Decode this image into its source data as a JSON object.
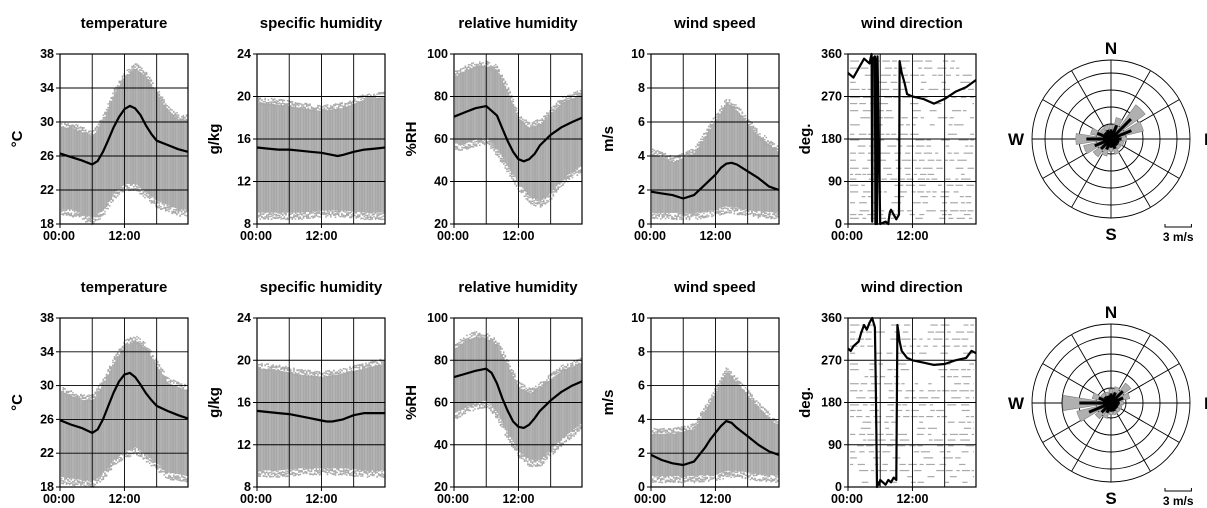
{
  "colors": {
    "envelope": "#a9a9a9",
    "mean": "#000000",
    "rose_fill": "#b0b0b0",
    "grid": "#000000"
  },
  "compass_labels": {
    "n": "N",
    "e": "E",
    "s": "S",
    "w": "W"
  },
  "rose_scale_label": "3 m/s",
  "chart_data": [
    {
      "type": "line",
      "row": 1,
      "title": "temperature",
      "ylabel": "°C",
      "x_ticks": [
        "00:00",
        "12:00"
      ],
      "xlim": [
        "00:00",
        "23:50"
      ],
      "yticks": [
        18,
        22,
        26,
        30,
        34,
        38
      ],
      "ylim": [
        18,
        38
      ],
      "envelope_hours": [
        0,
        2,
        4,
        6,
        8,
        10,
        12,
        14,
        16,
        18,
        20,
        22,
        24
      ],
      "envelope_lower": [
        19,
        19,
        18.5,
        18,
        19,
        21,
        22,
        22,
        21,
        20,
        19.5,
        19,
        19
      ],
      "envelope_upper": [
        30,
        30,
        29.5,
        29,
        31,
        34,
        36,
        37,
        36,
        34,
        32,
        31,
        31
      ],
      "mean_hours": [
        0,
        2,
        4,
        6,
        7,
        8,
        9,
        10,
        11,
        12,
        13,
        14,
        15,
        16,
        17,
        18,
        20,
        22,
        24
      ],
      "mean_values": [
        26.3,
        25.9,
        25.5,
        25.0,
        25.4,
        26.5,
        27.9,
        29.4,
        30.6,
        31.5,
        31.9,
        31.6,
        30.8,
        29.6,
        28.6,
        27.8,
        27.3,
        26.8,
        26.5
      ]
    },
    {
      "type": "line",
      "row": 1,
      "title": "specific humidity",
      "ylabel": "g/kg",
      "x_ticks": [
        "00:00",
        "12:00"
      ],
      "xlim": [
        "00:00",
        "23:50"
      ],
      "yticks": [
        8,
        12,
        16,
        20,
        24
      ],
      "ylim": [
        8,
        24
      ],
      "envelope_hours": [
        0,
        4,
        8,
        12,
        16,
        20,
        24
      ],
      "envelope_lower": [
        8.5,
        8.5,
        8.5,
        8.7,
        8.7,
        8.5,
        8.5
      ],
      "envelope_upper": [
        20,
        19.8,
        19.5,
        19.2,
        19.5,
        20.3,
        20.5
      ],
      "mean_hours": [
        0,
        2,
        4,
        6,
        8,
        10,
        12,
        14,
        15,
        16,
        18,
        20,
        22,
        24
      ],
      "mean_values": [
        15.2,
        15.1,
        15.0,
        15.0,
        14.9,
        14.8,
        14.7,
        14.5,
        14.4,
        14.5,
        14.8,
        15.0,
        15.1,
        15.2
      ]
    },
    {
      "type": "line",
      "row": 1,
      "title": "relative humidity",
      "ylabel": "%RH",
      "x_ticks": [
        "00:00",
        "12:00"
      ],
      "xlim": [
        "00:00",
        "23:50"
      ],
      "yticks": [
        20,
        40,
        60,
        80,
        100
      ],
      "ylim": [
        20,
        100
      ],
      "envelope_hours": [
        0,
        2,
        4,
        6,
        8,
        10,
        12,
        14,
        16,
        18,
        20,
        22,
        24
      ],
      "envelope_lower": [
        55,
        55,
        57,
        58,
        52,
        44,
        36,
        30,
        28,
        32,
        38,
        42,
        45
      ],
      "envelope_upper": [
        92,
        95,
        97,
        97,
        95,
        85,
        72,
        68,
        70,
        75,
        80,
        82,
        84
      ],
      "mean_hours": [
        0,
        2,
        4,
        6,
        8,
        9,
        10,
        11,
        12,
        13,
        14,
        15,
        16,
        18,
        20,
        22,
        24
      ],
      "mean_values": [
        70.5,
        72.5,
        74.5,
        75.5,
        71,
        65,
        59,
        54,
        50.5,
        49.5,
        50.5,
        53,
        57,
        62,
        65.5,
        68,
        70
      ]
    },
    {
      "type": "line",
      "row": 1,
      "title": "wind speed",
      "ylabel": "m/s",
      "x_ticks": [
        "00:00",
        "12:00"
      ],
      "xlim": [
        "00:00",
        "23:50"
      ],
      "yticks": [
        0,
        2,
        4,
        6,
        8,
        10
      ],
      "ylim": [
        0,
        10
      ],
      "envelope_hours": [
        0,
        4,
        8,
        12,
        14,
        16,
        20,
        24
      ],
      "envelope_lower": [
        0.3,
        0.3,
        0.3,
        0.5,
        0.7,
        0.6,
        0.4,
        0.3
      ],
      "envelope_upper": [
        4.5,
        4.0,
        4.5,
        6.5,
        7.5,
        7.0,
        5.5,
        4.5
      ],
      "mean_hours": [
        0,
        2,
        4,
        6,
        8,
        10,
        12,
        13,
        14,
        15,
        16,
        18,
        20,
        22,
        24
      ],
      "mean_values": [
        1.9,
        1.8,
        1.7,
        1.5,
        1.7,
        2.3,
        2.9,
        3.3,
        3.55,
        3.6,
        3.5,
        3.1,
        2.7,
        2.2,
        2.0
      ]
    },
    {
      "type": "line",
      "row": 1,
      "title": "wind direction",
      "ylabel": "deg.",
      "x_ticks": [
        "00:00",
        "12:00"
      ],
      "xlim": [
        "00:00",
        "23:50"
      ],
      "yticks": [
        0,
        90,
        180,
        270,
        360
      ],
      "ylim": [
        0,
        360
      ],
      "envelope_rows": [
        12,
        20,
        28,
        45,
        58,
        68,
        82,
        95,
        105,
        118,
        135,
        150,
        165,
        178,
        190,
        210,
        225,
        240,
        255,
        268,
        285,
        300,
        315,
        330,
        345
      ],
      "mean_hours": [
        0,
        1,
        2,
        3,
        4,
        4.4,
        4.5,
        4.6,
        5.0,
        5.1,
        5.2,
        5.25,
        5.3,
        5.4,
        5.5,
        6.0,
        7.0,
        7.5,
        7.6,
        7.8,
        8.0,
        9.0,
        9.5,
        9.6,
        10.0,
        10.5,
        11,
        12,
        14,
        16,
        18,
        20,
        22,
        24
      ],
      "mean_values": [
        320,
        310,
        330,
        350,
        340,
        360,
        5,
        350,
        355,
        0,
        340,
        5,
        350,
        0,
        355,
        0,
        5,
        0,
        10,
        25,
        30,
        10,
        20,
        345,
        320,
        300,
        275,
        270,
        265,
        255,
        265,
        280,
        290,
        305
      ]
    },
    {
      "type": "line",
      "row": 2,
      "title": "temperature",
      "ylabel": "°C",
      "x_ticks": [
        "00:00",
        "12:00"
      ],
      "xlim": [
        "00:00",
        "23:50"
      ],
      "yticks": [
        18,
        22,
        26,
        30,
        34,
        38
      ],
      "ylim": [
        18,
        38
      ],
      "envelope_hours": [
        0,
        2,
        4,
        6,
        8,
        10,
        12,
        14,
        16,
        18,
        20,
        22,
        24
      ],
      "envelope_lower": [
        18.5,
        18.3,
        18.1,
        18,
        19,
        20.5,
        21.5,
        22,
        21,
        20,
        19,
        18.8,
        18.5
      ],
      "envelope_upper": [
        30,
        29.5,
        29,
        29,
        31,
        33.5,
        35.5,
        36,
        35,
        33,
        31,
        30.5,
        30
      ],
      "mean_hours": [
        0,
        2,
        4,
        6,
        7,
        8,
        9,
        10,
        11,
        12,
        13,
        14,
        15,
        16,
        17,
        18,
        20,
        22,
        24
      ],
      "mean_values": [
        25.9,
        25.4,
        25.0,
        24.4,
        24.8,
        26.0,
        27.6,
        29.2,
        30.5,
        31.3,
        31.5,
        31.0,
        30.1,
        29.1,
        28.3,
        27.6,
        27.0,
        26.5,
        26.1
      ]
    },
    {
      "type": "line",
      "row": 2,
      "title": "specific humidity",
      "ylabel": "g/kg",
      "x_ticks": [
        "00:00",
        "12:00"
      ],
      "xlim": [
        "00:00",
        "23:50"
      ],
      "yticks": [
        8,
        12,
        16,
        20,
        24
      ],
      "ylim": [
        8,
        24
      ],
      "envelope_hours": [
        0,
        4,
        8,
        12,
        16,
        20,
        24
      ],
      "envelope_lower": [
        9,
        9,
        9.2,
        9.2,
        9.2,
        9,
        9
      ],
      "envelope_upper": [
        19.8,
        19.6,
        19.2,
        19,
        19.3,
        19.8,
        20.3
      ],
      "mean_hours": [
        0,
        2,
        4,
        6,
        8,
        10,
        12,
        13,
        14,
        16,
        18,
        20,
        22,
        24
      ],
      "mean_values": [
        15.2,
        15.1,
        15.0,
        14.9,
        14.7,
        14.5,
        14.3,
        14.2,
        14.2,
        14.4,
        14.8,
        15.0,
        15.0,
        15.0
      ]
    },
    {
      "type": "line",
      "row": 2,
      "title": "relative humidity",
      "ylabel": "%RH",
      "x_ticks": [
        "00:00",
        "12:00"
      ],
      "xlim": [
        "00:00",
        "23:50"
      ],
      "yticks": [
        20,
        40,
        60,
        80,
        100
      ],
      "ylim": [
        20,
        100
      ],
      "envelope_hours": [
        0,
        2,
        4,
        6,
        8,
        10,
        12,
        14,
        16,
        18,
        20,
        22,
        24
      ],
      "envelope_lower": [
        52,
        55,
        57,
        58,
        52,
        42,
        34,
        30,
        30,
        35,
        40,
        44,
        48
      ],
      "envelope_upper": [
        88,
        92,
        94,
        93,
        90,
        80,
        70,
        67,
        70,
        74,
        78,
        80,
        82
      ],
      "mean_hours": [
        0,
        2,
        4,
        6,
        7,
        8,
        9,
        10,
        11,
        12,
        13,
        14,
        15,
        16,
        18,
        20,
        22,
        24
      ],
      "mean_values": [
        72,
        73.5,
        75,
        76,
        74,
        69,
        62,
        56,
        51,
        48.5,
        48,
        49.5,
        52.5,
        56,
        61,
        65,
        68,
        70
      ]
    },
    {
      "type": "line",
      "row": 2,
      "title": "wind speed",
      "ylabel": "m/s",
      "x_ticks": [
        "00:00",
        "12:00"
      ],
      "xlim": [
        "00:00",
        "23:50"
      ],
      "yticks": [
        0,
        2,
        4,
        6,
        8,
        10
      ],
      "ylim": [
        0,
        10
      ],
      "envelope_hours": [
        0,
        4,
        8,
        12,
        14,
        16,
        20,
        24
      ],
      "envelope_lower": [
        0.3,
        0.3,
        0.3,
        0.4,
        0.6,
        0.6,
        0.4,
        0.3
      ],
      "envelope_upper": [
        3.5,
        3.5,
        3.8,
        6,
        7.2,
        6.5,
        5,
        3.8
      ],
      "mean_hours": [
        0,
        2,
        4,
        6,
        8,
        10,
        11,
        12,
        13,
        14,
        15,
        16,
        18,
        20,
        22,
        24
      ],
      "mean_values": [
        1.9,
        1.6,
        1.4,
        1.3,
        1.5,
        2.3,
        2.8,
        3.2,
        3.6,
        3.9,
        3.8,
        3.5,
        3.0,
        2.5,
        2.1,
        1.9
      ]
    },
    {
      "type": "line",
      "row": 2,
      "title": "wind direction",
      "ylabel": "deg.",
      "x_ticks": [
        "00:00",
        "12:00"
      ],
      "xlim": [
        "00:00",
        "23:50"
      ],
      "yticks": [
        0,
        90,
        180,
        270,
        360
      ],
      "ylim": [
        0,
        360
      ],
      "envelope_rows": [
        10,
        22,
        35,
        48,
        62,
        75,
        88,
        100,
        112,
        125,
        138,
        150,
        163,
        175,
        190,
        205,
        220,
        235,
        250,
        262,
        285,
        300,
        315,
        330,
        345
      ],
      "mean_hours": [
        0,
        0.5,
        1,
        1.5,
        2,
        2.5,
        3,
        3.5,
        4,
        4.5,
        5,
        5.2,
        5.4,
        5.6,
        5.8,
        6.0,
        6.5,
        7.0,
        7.5,
        8.0,
        8.5,
        9.0,
        9.2,
        9.4,
        9.6,
        10,
        11,
        12,
        14,
        16,
        18,
        20,
        22,
        23,
        24
      ],
      "mean_values": [
        295,
        290,
        300,
        305,
        310,
        330,
        345,
        335,
        350,
        360,
        340,
        200,
        0,
        10,
        5,
        15,
        10,
        5,
        15,
        10,
        20,
        15,
        345,
        330,
        310,
        290,
        275,
        270,
        265,
        260,
        262,
        270,
        275,
        290,
        285
      ]
    },
    {
      "type": "wind_rose",
      "row": 1,
      "direction_labels": [
        "N",
        "E",
        "S",
        "W"
      ],
      "scale_bar_ms": 3,
      "bins_deg": [
        0,
        22.5,
        45,
        67.5,
        90,
        112.5,
        135,
        157.5,
        180,
        202.5,
        225,
        247.5,
        270,
        292.5,
        315,
        337.5
      ],
      "mean_speed_ms": [
        1.1,
        1.7,
        3.2,
        2.5,
        1.2,
        1.0,
        1.0,
        1.2,
        1.0,
        1.3,
        1.6,
        2.0,
        2.8,
        1.7,
        1.0,
        1.1
      ],
      "max_speed_ms": [
        1.6,
        2.5,
        4.8,
        3.8,
        1.8,
        1.5,
        1.4,
        1.8,
        1.4,
        2.0,
        2.5,
        3.2,
        4.0,
        2.4,
        1.5,
        1.6
      ]
    },
    {
      "type": "wind_rose",
      "row": 2,
      "direction_labels": [
        "N",
        "E",
        "S",
        "W"
      ],
      "scale_bar_ms": 3,
      "bins_deg": [
        0,
        22.5,
        45,
        67.5,
        90,
        112.5,
        135,
        157.5,
        180,
        202.5,
        225,
        247.5,
        270,
        292.5,
        315,
        337.5
      ],
      "mean_speed_ms": [
        1.1,
        1.3,
        1.9,
        1.5,
        1.0,
        0.9,
        0.9,
        1.0,
        1.0,
        1.2,
        1.5,
        2.7,
        3.6,
        1.5,
        1.0,
        0.9
      ],
      "max_speed_ms": [
        1.6,
        1.9,
        2.8,
        2.2,
        1.4,
        1.3,
        1.3,
        1.4,
        1.3,
        1.8,
        2.2,
        4.0,
        5.5,
        2.2,
        1.4,
        1.3
      ]
    }
  ]
}
